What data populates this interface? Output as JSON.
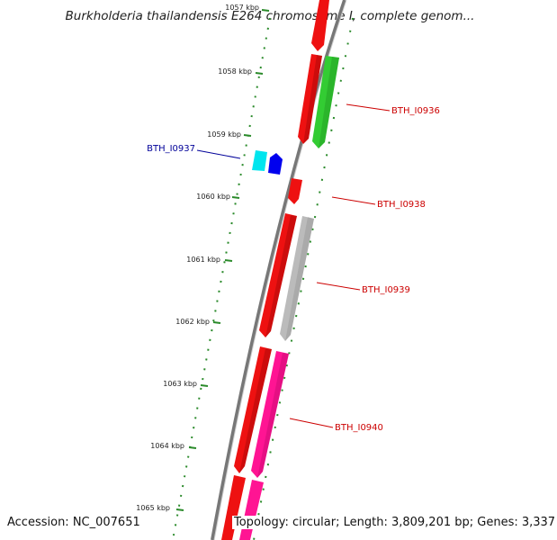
{
  "map": {
    "title": "Burkholderia thailandensis E264 chromosome I, complete genom...",
    "accession": "Accession: NC_007651",
    "summary": "Topology: circular; Length: 3,809,201 bp; Genes: 3,337",
    "colors": {
      "backbone": "#777777",
      "ruler": "#2a8a2a",
      "cds_red": "#ee1111",
      "cds_green": "#33cc33",
      "cds_grey": "#bbbbbb",
      "cds_magenta": "#ff1493",
      "cds_cyan": "#00e5ee",
      "cds_blue": "#0000ee",
      "label_red": "#cc0000",
      "label_blue": "#000099"
    }
  },
  "ticks": [
    {
      "label": "1057 kbp"
    },
    {
      "label": "1058 kbp"
    },
    {
      "label": "1059 kbp"
    },
    {
      "label": "1060 kbp"
    },
    {
      "label": "1061 kbp"
    },
    {
      "label": "1062 kbp"
    },
    {
      "label": "1063 kbp"
    },
    {
      "label": "1064 kbp"
    },
    {
      "label": "1065 kbp"
    }
  ],
  "gene_labels": [
    {
      "text": "BTH_I0936",
      "color": "#cc0000"
    },
    {
      "text": "BTH_I0937",
      "color": "#000099"
    },
    {
      "text": "BTH_I0938",
      "color": "#cc0000"
    },
    {
      "text": "BTH_I0939",
      "color": "#cc0000"
    },
    {
      "text": "BTH_I0940",
      "color": "#cc0000"
    }
  ]
}
